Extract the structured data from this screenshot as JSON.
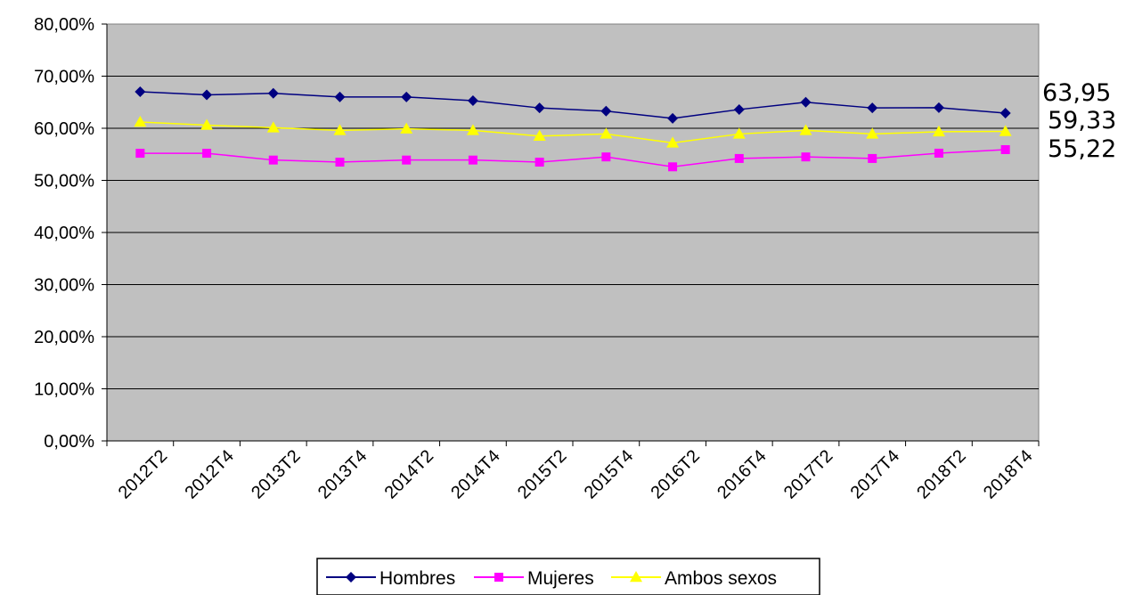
{
  "chart_data": {
    "type": "line",
    "categories": [
      "2012T2",
      "2012T4",
      "2013T2",
      "2013T4",
      "2014T2",
      "2014T4",
      "2015T2",
      "2015T4",
      "2016T2",
      "2016T4",
      "2017T2",
      "2017T4",
      "2018T2",
      "2018T4"
    ],
    "ylim": [
      0,
      80
    ],
    "y_ticks": [
      "0,00%",
      "10,00%",
      "20,00%",
      "30,00%",
      "40,00%",
      "50,00%",
      "60,00%",
      "70,00%",
      "80,00%"
    ],
    "y_tick_values": [
      0,
      10,
      20,
      30,
      40,
      50,
      60,
      70,
      80
    ],
    "grid": true,
    "plot_background": "#c0c0c0",
    "legend_position": "bottom",
    "series": [
      {
        "name": "Hombres",
        "color": "#000080",
        "marker": "diamond",
        "values": [
          67.0,
          66.4,
          66.7,
          66.0,
          66.0,
          65.3,
          63.9,
          63.3,
          61.9,
          63.6,
          65.0,
          63.9,
          63.95,
          62.9
        ]
      },
      {
        "name": "Mujeres",
        "color": "#ff00ff",
        "marker": "square",
        "values": [
          55.2,
          55.2,
          53.9,
          53.5,
          53.9,
          53.9,
          53.5,
          54.5,
          52.6,
          54.2,
          54.5,
          54.2,
          55.22,
          55.9
        ]
      },
      {
        "name": "Ambos sexos",
        "color": "#ffff00",
        "marker": "triangle",
        "values": [
          61.2,
          60.6,
          60.1,
          59.6,
          59.9,
          59.6,
          58.5,
          58.9,
          57.2,
          58.9,
          59.6,
          58.9,
          59.33,
          59.4
        ]
      }
    ],
    "annotations": [
      "63,95",
      "59,33",
      "55,22"
    ]
  }
}
